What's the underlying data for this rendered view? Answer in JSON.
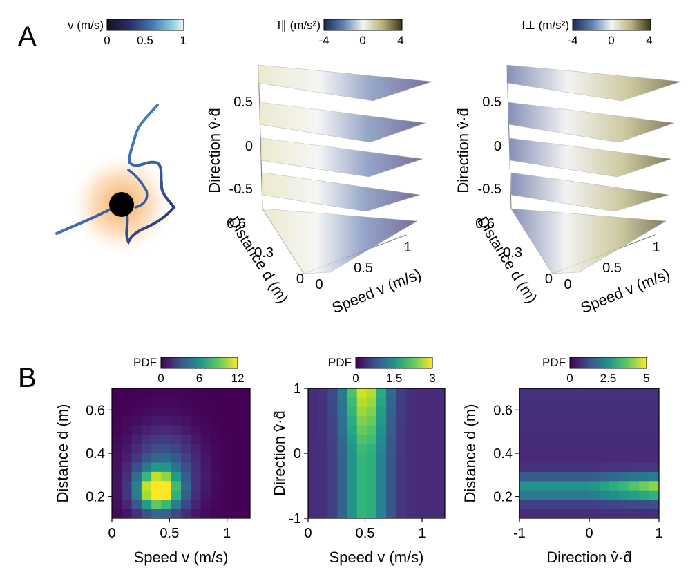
{
  "panel_labels": {
    "a": "A",
    "b": "B"
  },
  "colorbars": {
    "speed": {
      "label": "v (m/s)",
      "ticks": [
        "0",
        "0.5",
        "1"
      ]
    },
    "f_par": {
      "label": "f∥ (m/s²)",
      "ticks": [
        "-4",
        "0",
        "4"
      ]
    },
    "f_perp": {
      "label": "f⊥ (m/s²)",
      "ticks": [
        "-4",
        "0",
        "4"
      ]
    }
  },
  "surface_axes": {
    "direction_label": "Direction v̂·d̂",
    "direction_ticks": [
      "0.5",
      "0",
      "-0.5"
    ],
    "distance_label": "Distance d (m)",
    "distance_ticks": [
      "0.6",
      "0.3",
      "0"
    ],
    "speed_label": "Speed v (m/s)",
    "speed_ticks": [
      "0",
      "0.5",
      "1"
    ]
  },
  "chart_data": [
    {
      "type": "heatmap",
      "title": "",
      "colorbar_label": "PDF",
      "colorbar_ticks": [
        "0",
        "6",
        "12"
      ],
      "zlim": [
        0,
        12
      ],
      "xlabel": "Speed v (m/s)",
      "ylabel": "Distance d (m)",
      "xlim": [
        0,
        1.2
      ],
      "ylim": [
        0.1,
        0.7
      ],
      "xticks": [
        "0",
        "0.5",
        "1"
      ],
      "yticks": [
        "0.2",
        "0.4",
        "0.6"
      ],
      "peak": {
        "x": 0.4,
        "y": 0.23,
        "value": 12
      }
    },
    {
      "type": "heatmap",
      "title": "",
      "colorbar_label": "PDF",
      "colorbar_ticks": [
        "0",
        "1.5",
        "3"
      ],
      "zlim": [
        0,
        3
      ],
      "xlabel": "Speed v (m/s)",
      "ylabel": "Direction v̂·d̂",
      "xlim": [
        0,
        1.2
      ],
      "ylim": [
        -1,
        1
      ],
      "xticks": [
        "0",
        "0.5",
        "1"
      ],
      "yticks": [
        "1",
        "0",
        "-1"
      ],
      "peak": {
        "x": 0.5,
        "y": 0.9,
        "value": 2.5
      }
    },
    {
      "type": "heatmap",
      "title": "",
      "colorbar_label": "PDF",
      "colorbar_ticks": [
        "0",
        "2.5",
        "5"
      ],
      "zlim": [
        0,
        5
      ],
      "xlabel": "Direction v̂·d̂",
      "ylabel": "Distance d (m)",
      "xlim": [
        -1,
        1
      ],
      "ylim": [
        0.1,
        0.7
      ],
      "xticks": [
        "-1",
        "0",
        "1"
      ],
      "yticks": [
        "0.2",
        "0.4",
        "0.6"
      ],
      "peak": {
        "x": 0.9,
        "y": 0.25,
        "value": 4
      }
    }
  ]
}
